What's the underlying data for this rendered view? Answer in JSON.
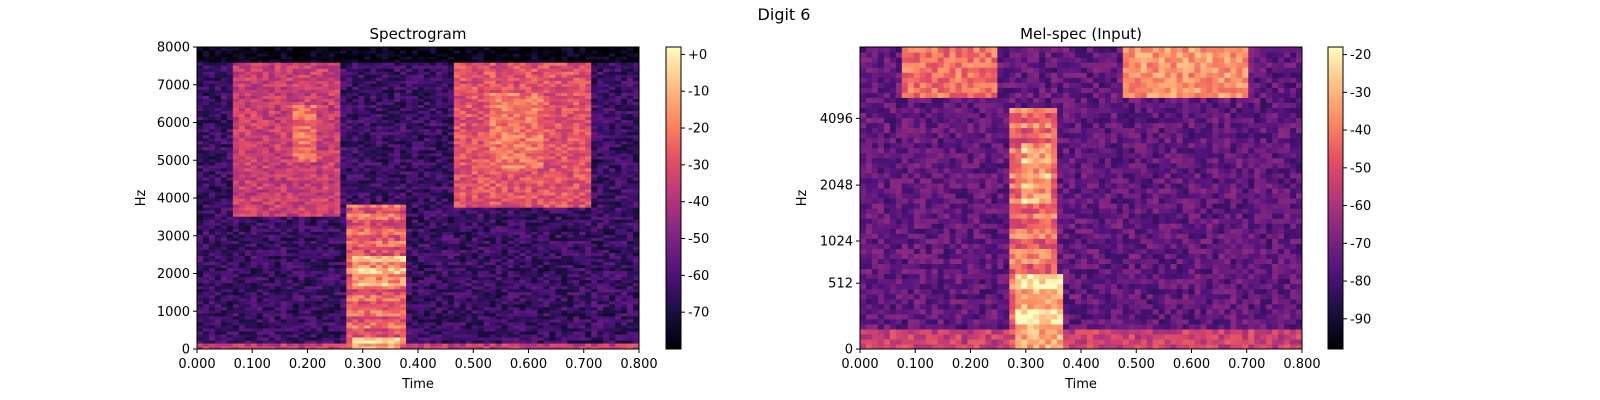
{
  "figure": {
    "suptitle": "Digit 6"
  },
  "chart_data": [
    {
      "type": "heatmap",
      "title": "Spectrogram",
      "xlabel": "Time",
      "ylabel": "Hz",
      "x_ticks": [
        0.0,
        0.1,
        0.2,
        0.3,
        0.4,
        0.5,
        0.6,
        0.7,
        0.8
      ],
      "x_tick_labels": [
        "0.000",
        "0.100",
        "0.200",
        "0.300",
        "0.400",
        "0.500",
        "0.600",
        "0.700",
        "0.800"
      ],
      "xlim": [
        0,
        0.8
      ],
      "y_ticks": [
        0,
        1000,
        2000,
        3000,
        4000,
        5000,
        6000,
        7000,
        8000
      ],
      "y_tick_labels": [
        "0",
        "1000",
        "2000",
        "3000",
        "4000",
        "5000",
        "6000",
        "7000",
        "8000"
      ],
      "ylim": [
        0,
        8000
      ],
      "y_scale": "linear",
      "colormap": "magma",
      "colorbar": {
        "range": [
          -80,
          2
        ],
        "ticks": [
          0,
          -10,
          -20,
          -30,
          -40,
          -50,
          -60,
          -70
        ],
        "tick_labels": [
          "+0",
          "-10",
          "-20",
          "-30",
          "-40",
          "-50",
          "-60",
          "-70"
        ]
      },
      "regions": [
        {
          "t": [
            0.07,
            0.26
          ],
          "f": [
            3500,
            7600
          ],
          "level": 0.55
        },
        {
          "t": [
            0.17,
            0.22
          ],
          "f": [
            5000,
            6500
          ],
          "level": 0.7
        },
        {
          "t": [
            0.27,
            0.38
          ],
          "f": [
            0,
            3800
          ],
          "level": 0.72
        },
        {
          "t": [
            0.28,
            0.37
          ],
          "f": [
            0,
            300
          ],
          "level": 0.95
        },
        {
          "t": [
            0.28,
            0.38
          ],
          "f": [
            1700,
            2500
          ],
          "level": 0.88
        },
        {
          "t": [
            0.47,
            0.71
          ],
          "f": [
            3800,
            7600
          ],
          "level": 0.62
        },
        {
          "t": [
            0.53,
            0.63
          ],
          "f": [
            4800,
            6800
          ],
          "level": 0.72
        }
      ]
    },
    {
      "type": "heatmap",
      "title": "Mel-spec (Input)",
      "xlabel": "Time",
      "ylabel": "Hz",
      "x_ticks": [
        0.0,
        0.1,
        0.2,
        0.3,
        0.4,
        0.5,
        0.6,
        0.7,
        0.8
      ],
      "x_tick_labels": [
        "0.000",
        "0.100",
        "0.200",
        "0.300",
        "0.400",
        "0.500",
        "0.600",
        "0.700",
        "0.800"
      ],
      "xlim": [
        0,
        0.8
      ],
      "y_ticks": [
        0,
        512,
        1024,
        2048,
        4096
      ],
      "y_tick_labels": [
        "0",
        "512",
        "1024",
        "2048",
        "4096"
      ],
      "ylim": [
        0,
        8000
      ],
      "y_scale": "mel",
      "colormap": "magma",
      "colorbar": {
        "range": [
          -98,
          -18
        ],
        "ticks": [
          -20,
          -30,
          -40,
          -50,
          -60,
          -70,
          -80,
          -90
        ],
        "tick_labels": [
          "-20",
          "-30",
          "-40",
          "-50",
          "-60",
          "-70",
          "-80",
          "-90"
        ]
      },
      "regions": [
        {
          "t": [
            0.08,
            0.25
          ],
          "f": [
            5000,
            8000
          ],
          "level": 0.7
        },
        {
          "t": [
            0.27,
            0.36
          ],
          "f": [
            0,
            4500
          ],
          "level": 0.75
        },
        {
          "t": [
            0.28,
            0.37
          ],
          "f": [
            0,
            600
          ],
          "level": 0.95
        },
        {
          "t": [
            0.29,
            0.35
          ],
          "f": [
            1700,
            3200
          ],
          "level": 0.9
        },
        {
          "t": [
            0.48,
            0.7
          ],
          "f": [
            5000,
            8000
          ],
          "level": 0.78
        }
      ]
    }
  ]
}
